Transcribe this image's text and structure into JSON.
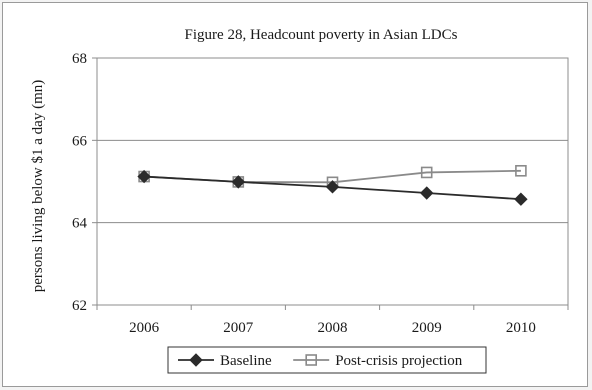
{
  "chart_data": {
    "type": "line",
    "title": "Figure 28, Headcount poverty in Asian LDCs",
    "xlabel": "",
    "ylabel": "persons living below $1 a day (mn)",
    "categories": [
      "2006",
      "2007",
      "2008",
      "2009",
      "2010"
    ],
    "ylim": [
      62,
      68
    ],
    "yticks": [
      62,
      64,
      66,
      68
    ],
    "grid": "horizontal",
    "legend_position": "bottom",
    "series": [
      {
        "name": "Baseline",
        "values": [
          65.12,
          64.99,
          64.87,
          64.72,
          64.57
        ],
        "color": "#2b2b2b",
        "marker": "diamond"
      },
      {
        "name": "Post-crisis projection",
        "values": [
          65.12,
          64.99,
          64.98,
          65.22,
          65.26
        ],
        "color": "#8a8a8a",
        "marker": "square"
      }
    ]
  }
}
